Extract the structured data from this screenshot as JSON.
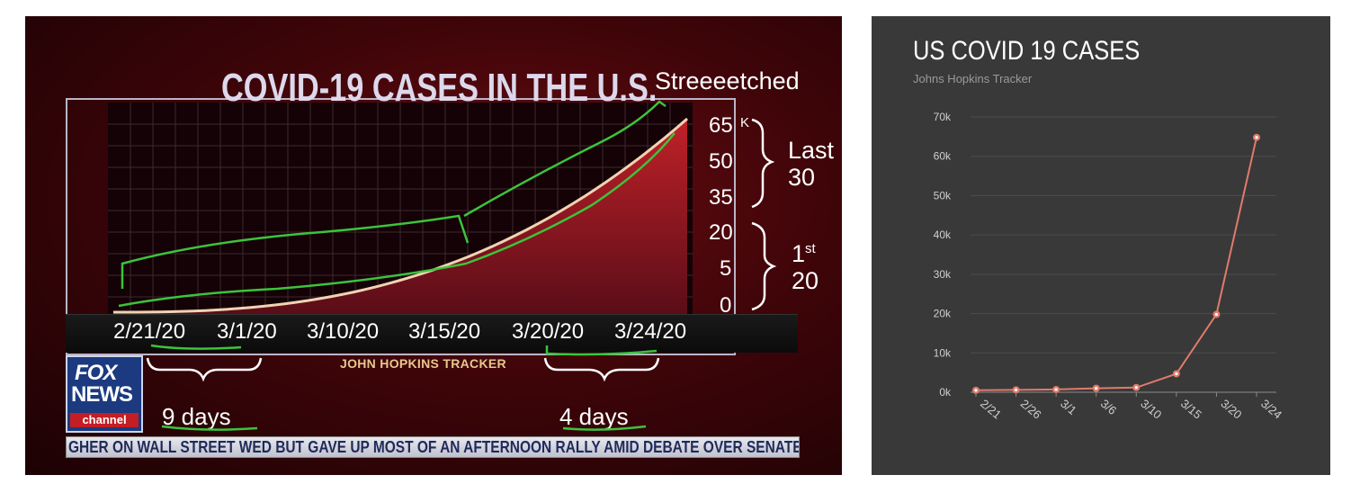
{
  "left_panel": {
    "title": "COVID-19 CASES IN THE U.S.",
    "annotation_title": "Streeeetched",
    "tracker_label": "JOHN HOPKINS TRACKER",
    "logo": {
      "line1": "FOX",
      "line2": "NEWS",
      "line3": "channel"
    },
    "annotations": {
      "last_30_a": "Last",
      "last_30_b": "30",
      "first_20_a": "1",
      "first_20_sup": "st",
      "first_20_b": "20",
      "nine_days": "9 days",
      "four_days": "4 days"
    },
    "ticker": "GHER ON WALL STREET WED BUT GAVE UP MOST OF AN AFTERNOON RALLY AMID DEBATE OVER SENATE C",
    "colors": {
      "annotation": "#3cc43c",
      "curve": "#f1d3b4",
      "fill": "#8a1418"
    }
  },
  "chart_data": [
    {
      "type": "area",
      "title": "COVID-19 CASES IN THE U.S.",
      "xlabel": "",
      "ylabel": "",
      "x_tick_labels": [
        "2/21/20",
        "3/1/20",
        "3/10/20",
        "3/15/20",
        "3/20/20",
        "3/24/20"
      ],
      "y_tick_labels": [
        "65",
        "50",
        "35",
        "20",
        "5",
        "0"
      ],
      "y_unit": "K",
      "grid": true
    },
    {
      "type": "line",
      "title": "US COVID 19 CASES",
      "subtitle": "Johns Hopkins Tracker",
      "categories": [
        "2/21",
        "2/26",
        "3/1",
        "3/6",
        "3/10",
        "3/15",
        "3/20",
        "3/24"
      ],
      "series": [
        {
          "values": [
            500,
            600,
            700,
            1000,
            1200,
            4700,
            19800,
            64800
          ]
        }
      ],
      "y_tick_labels": [
        "0k",
        "10k",
        "20k",
        "30k",
        "40k",
        "50k",
        "60k",
        "70k"
      ],
      "ylim": [
        0,
        70000
      ],
      "grid": true,
      "colors": {
        "line": "#e07b6c",
        "background": "#393939"
      }
    }
  ]
}
